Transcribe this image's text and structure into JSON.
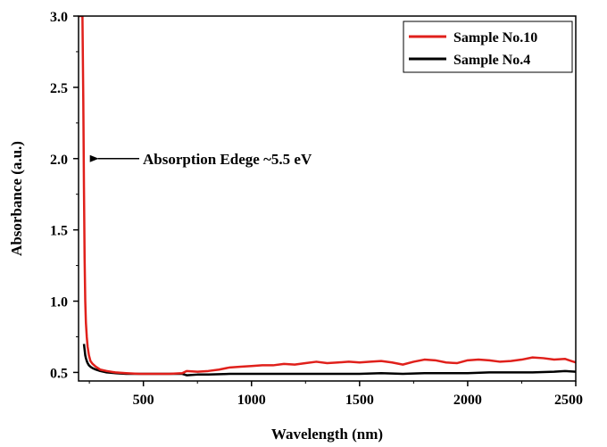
{
  "chart_data": {
    "type": "line",
    "xlabel": "Wavelength (nm)",
    "ylabel": "Absorbance (a.u.)",
    "xlim": [
      200,
      2500
    ],
    "ylim": [
      0.44,
      3.0
    ],
    "x_ticks": [
      500,
      1000,
      1500,
      2000,
      2500
    ],
    "x_tick_labels": [
      "500",
      "1000",
      "1500",
      "2000",
      "2500"
    ],
    "y_ticks": [
      0.5,
      1.0,
      1.5,
      2.0,
      2.5,
      3.0
    ],
    "y_tick_labels": [
      "0.5",
      "1.0",
      "1.5",
      "2.0",
      "2.5",
      "3.0"
    ],
    "grid": false,
    "legend_position": "top-right",
    "series": [
      {
        "name": "Sample No.10",
        "color": "#e0201b",
        "x": [
          200,
          210,
          218,
          222,
          225,
          228,
          231,
          234,
          238,
          242,
          248,
          255,
          265,
          280,
          300,
          330,
          370,
          420,
          480,
          550,
          620,
          680,
          700,
          750,
          800,
          850,
          900,
          950,
          1000,
          1050,
          1100,
          1150,
          1200,
          1250,
          1300,
          1350,
          1400,
          1450,
          1500,
          1550,
          1600,
          1650,
          1700,
          1750,
          1800,
          1850,
          1900,
          1950,
          2000,
          2050,
          2100,
          2150,
          2200,
          2250,
          2300,
          2350,
          2400,
          2450,
          2480,
          2500
        ],
        "y": [
          3.0,
          3.0,
          3.0,
          2.4,
          1.8,
          1.3,
          1.0,
          0.85,
          0.75,
          0.68,
          0.62,
          0.58,
          0.56,
          0.54,
          0.52,
          0.51,
          0.5,
          0.495,
          0.49,
          0.49,
          0.49,
          0.495,
          0.51,
          0.505,
          0.51,
          0.52,
          0.535,
          0.54,
          0.545,
          0.55,
          0.55,
          0.56,
          0.555,
          0.565,
          0.575,
          0.565,
          0.57,
          0.575,
          0.57,
          0.575,
          0.58,
          0.57,
          0.555,
          0.575,
          0.59,
          0.585,
          0.57,
          0.565,
          0.585,
          0.59,
          0.585,
          0.575,
          0.58,
          0.59,
          0.605,
          0.6,
          0.59,
          0.595,
          0.58,
          0.57
        ]
      },
      {
        "name": "Sample No.4",
        "color": "#000000",
        "x": [
          225,
          228,
          231,
          234,
          238,
          242,
          248,
          255,
          265,
          280,
          300,
          330,
          370,
          420,
          480,
          550,
          620,
          680,
          700,
          750,
          800,
          900,
          1000,
          1100,
          1200,
          1300,
          1400,
          1500,
          1600,
          1700,
          1800,
          1900,
          2000,
          2100,
          2200,
          2300,
          2400,
          2450,
          2500
        ],
        "y": [
          0.7,
          0.66,
          0.62,
          0.6,
          0.58,
          0.565,
          0.55,
          0.54,
          0.53,
          0.52,
          0.51,
          0.5,
          0.495,
          0.49,
          0.49,
          0.49,
          0.49,
          0.49,
          0.48,
          0.485,
          0.485,
          0.49,
          0.49,
          0.49,
          0.49,
          0.49,
          0.49,
          0.49,
          0.495,
          0.49,
          0.495,
          0.495,
          0.495,
          0.5,
          0.5,
          0.5,
          0.505,
          0.51,
          0.505
        ]
      }
    ],
    "annotation": {
      "text": "Absorption Edege ~5.5 eV",
      "arrow_to_x": 240,
      "arrow_to_y": 2.0
    }
  }
}
